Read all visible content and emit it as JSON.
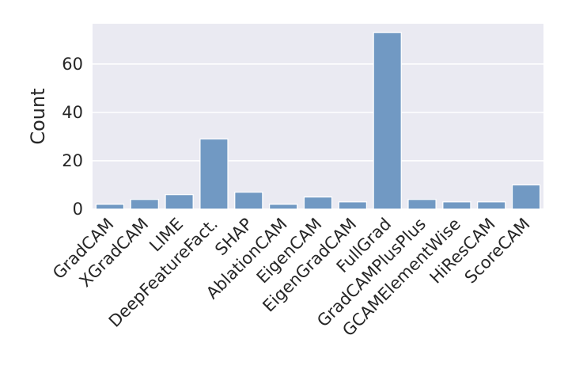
{
  "chart_data": {
    "type": "bar",
    "categories": [
      "GradCAM",
      "XGradCAM",
      "LIME",
      "DeepFeatureFact.",
      "SHAP",
      "AblationCAM",
      "EigenCAM",
      "EigenGradCAM",
      "FullGrad",
      "GradCAMPlusPlus",
      "GCAMElementWise",
      "HiResCAM",
      "ScoreCAM"
    ],
    "values": [
      2,
      4,
      6,
      29,
      7,
      2,
      5,
      3,
      73,
      4,
      3,
      3,
      10
    ],
    "title": "",
    "xlabel": "",
    "ylabel": "Count",
    "ylim": [
      0,
      76.65
    ],
    "yticks": [
      0,
      20,
      40,
      60
    ],
    "grid": true,
    "bar_color": "#7199c3",
    "background_color": "#eaeaf2"
  }
}
